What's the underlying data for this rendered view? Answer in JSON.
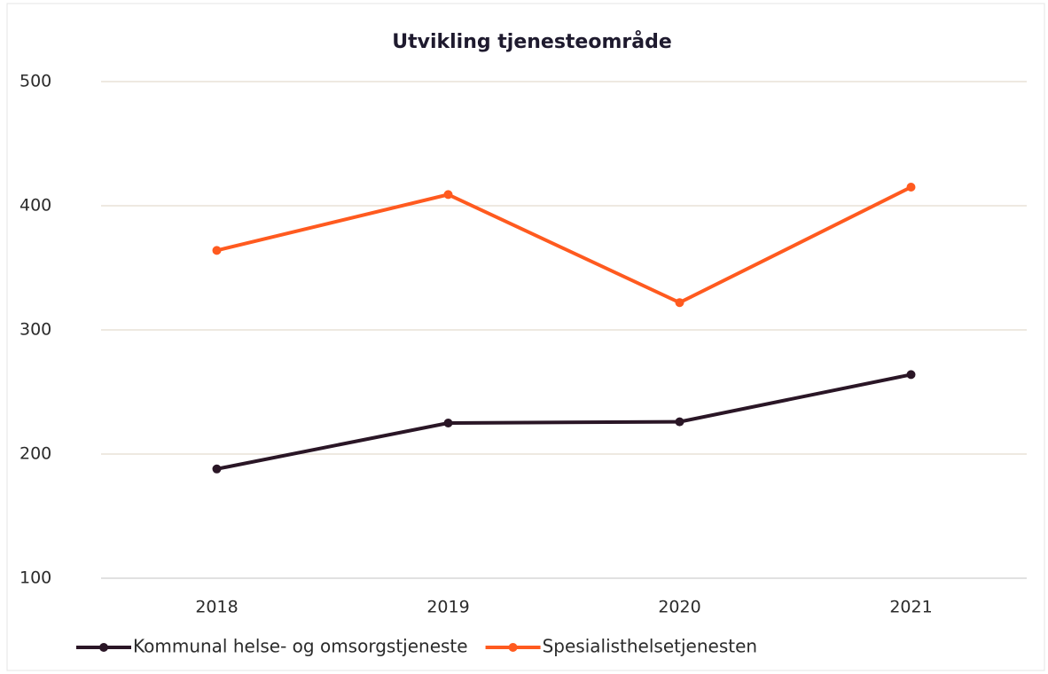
{
  "chart_data": {
    "type": "line",
    "title": "Utvikling tjenesteområde",
    "categories": [
      "2018",
      "2019",
      "2020",
      "2021"
    ],
    "series": [
      {
        "name": "Kommunal helse- og omsorgstjeneste",
        "color": "#2a1626",
        "values": [
          188,
          225,
          226,
          264
        ]
      },
      {
        "name": "Spesialisthelsetjenesten",
        "color": "#ff5a1f",
        "values": [
          364,
          409,
          322,
          415
        ]
      }
    ],
    "ylim": [
      100,
      500
    ],
    "yticks": [
      100,
      200,
      300,
      400,
      500
    ],
    "grid": true,
    "legend": "bottom"
  }
}
